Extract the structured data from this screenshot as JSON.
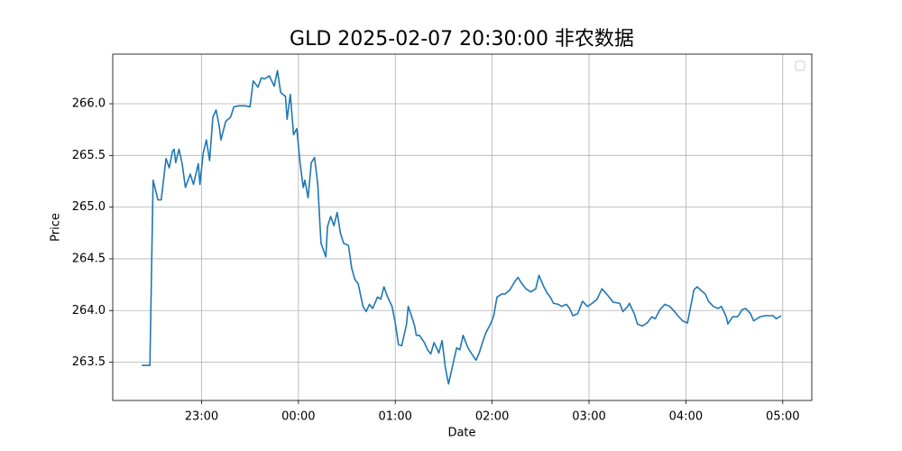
{
  "chart_data": {
    "type": "line",
    "title": "GLD 2025-02-07 20:30:00 非农数据",
    "x_label": "Date",
    "y_label": "Price",
    "color": "#1f77b4",
    "grid": true,
    "legend": "upper right",
    "xlim": [
      "22:05",
      "05:18"
    ],
    "xticks": [
      "23:00",
      "00:00",
      "01:00",
      "02:00",
      "03:00",
      "04:00",
      "05:00"
    ],
    "ylim": [
      263.13,
      266.48
    ],
    "yticks": [
      263.5,
      {
        "value": 264,
        "label": "264.0"
      },
      264.5,
      {
        "value": 265,
        "label": "265.0"
      },
      265.5,
      {
        "value": 266,
        "label": "266.0"
      }
    ],
    "x": [
      "22:23",
      "22:28",
      "22:30",
      "22:33",
      "22:35",
      "22:38",
      "22:40",
      "22:42",
      "22:43",
      "22:44",
      "22:46",
      "22:48",
      "22:50",
      "22:53",
      "22:55",
      "22:58",
      "22:59",
      "23:01",
      "23:03",
      "23:05",
      "23:07",
      "23:09",
      "23:11",
      "23:12",
      "23:15",
      "23:18",
      "23:20",
      "23:23",
      "23:27",
      "23:30",
      "23:32",
      "23:35",
      "23:37",
      "23:39",
      "23:42",
      "23:45",
      "23:47",
      "23:49",
      "23:52",
      "23:53",
      "23:55",
      "23:57",
      "23:59",
      "00:01",
      "00:03",
      "00:04",
      "00:06",
      "00:08",
      "00:10",
      "00:12",
      "00:14",
      "00:17",
      "00:18",
      "00:20",
      "00:22",
      "00:24",
      "00:26",
      "00:28",
      "00:31",
      "00:33",
      "00:35",
      "00:37",
      "00:40",
      "00:42",
      "00:44",
      "00:46",
      "00:49",
      "00:51",
      "00:53",
      "00:55",
      "00:58",
      "01:00",
      "01:02",
      "01:04",
      "01:07",
      "01:08",
      "01:10",
      "01:12",
      "01:13",
      "01:15",
      "01:18",
      "01:20",
      "01:22",
      "01:24",
      "01:27",
      "01:29",
      "01:31",
      "01:33",
      "01:36",
      "01:38",
      "01:40",
      "01:42",
      "01:45",
      "01:47",
      "01:50",
      "01:52",
      "01:54",
      "01:56",
      "01:59",
      "02:01",
      "02:03",
      "02:06",
      "02:08",
      "02:11",
      "02:14",
      "02:16",
      "02:18",
      "02:21",
      "02:24",
      "02:27",
      "02:29",
      "02:32",
      "02:34",
      "02:36",
      "02:38",
      "02:41",
      "02:43",
      "02:46",
      "02:48",
      "02:50",
      "02:53",
      "02:56",
      "02:59",
      "03:02",
      "03:05",
      "03:08",
      "03:12",
      "03:15",
      "03:19",
      "03:21",
      "03:24",
      "03:25",
      "03:28",
      "03:30",
      "03:33",
      "03:36",
      "03:39",
      "03:41",
      "03:44",
      "03:47",
      "03:50",
      "03:53",
      "03:55",
      "03:58",
      "04:01",
      "04:03",
      "04:05",
      "04:07",
      "04:09",
      "04:12",
      "04:14",
      "04:17",
      "04:20",
      "04:22",
      "04:25",
      "04:26",
      "04:29",
      "04:32",
      "04:35",
      "04:37",
      "04:40",
      "04:42",
      "04:46",
      "04:49",
      "04:51",
      "04:54",
      "04:56",
      "04:59"
    ],
    "values": [
      263.47,
      263.47,
      265.26,
      265.07,
      265.07,
      265.47,
      265.38,
      265.54,
      265.56,
      265.43,
      265.56,
      265.42,
      265.19,
      265.32,
      265.22,
      265.42,
      265.22,
      265.52,
      265.65,
      265.45,
      265.87,
      265.94,
      265.78,
      265.65,
      265.83,
      265.87,
      265.97,
      265.98,
      265.98,
      265.97,
      266.22,
      266.16,
      266.25,
      266.24,
      266.27,
      266.17,
      266.32,
      266.11,
      266.07,
      265.85,
      266.09,
      265.7,
      265.76,
      265.43,
      265.19,
      265.26,
      265.09,
      265.43,
      265.48,
      265.22,
      264.65,
      264.52,
      264.81,
      264.91,
      264.82,
      264.95,
      264.75,
      264.65,
      264.63,
      264.41,
      264.3,
      264.26,
      264.04,
      263.99,
      264.06,
      264.02,
      264.13,
      264.11,
      264.23,
      264.14,
      264.04,
      263.88,
      263.67,
      263.66,
      263.87,
      264.04,
      263.95,
      263.85,
      263.76,
      263.76,
      263.69,
      263.62,
      263.58,
      263.69,
      263.59,
      263.71,
      263.45,
      263.29,
      263.5,
      263.64,
      263.62,
      263.76,
      263.64,
      263.59,
      263.52,
      263.59,
      263.69,
      263.78,
      263.87,
      263.95,
      264.13,
      264.16,
      264.16,
      264.2,
      264.28,
      264.32,
      264.27,
      264.21,
      264.18,
      264.21,
      264.34,
      264.23,
      264.17,
      264.13,
      264.07,
      264.06,
      264.04,
      264.06,
      264.02,
      263.95,
      263.97,
      264.09,
      264.04,
      264.07,
      264.11,
      264.21,
      264.14,
      264.08,
      264.07,
      263.99,
      264.04,
      264.07,
      263.97,
      263.87,
      263.85,
      263.88,
      263.94,
      263.92,
      264.01,
      264.06,
      264.04,
      263.99,
      263.95,
      263.9,
      263.88,
      264.04,
      264.2,
      264.23,
      264.2,
      264.16,
      264.09,
      264.04,
      264.02,
      264.04,
      263.94,
      263.87,
      263.94,
      263.94,
      264.01,
      264.02,
      263.97,
      263.9,
      263.94,
      263.95,
      263.95,
      263.95,
      263.92,
      263.95
    ]
  }
}
